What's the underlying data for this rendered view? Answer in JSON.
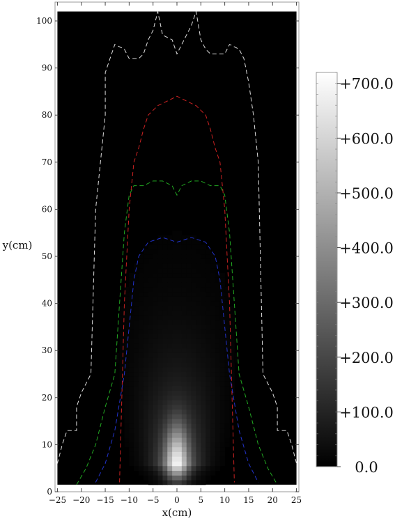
{
  "chart_data": {
    "type": "heatmap",
    "title": "",
    "xlabel": "x(cm)",
    "ylabel": "y(cm)",
    "xlim": [
      -25.5,
      25.5
    ],
    "ylim": [
      0,
      104
    ],
    "x_ticks": [
      -25,
      -20,
      -15,
      -10,
      -5,
      0,
      5,
      10,
      15,
      20,
      25
    ],
    "x_tick_labels": [
      "−25",
      "−20",
      "−15",
      "−10",
      "−5",
      "0",
      "5",
      "10",
      "15",
      "20",
      "25"
    ],
    "y_ticks": [
      0,
      10,
      20,
      30,
      40,
      50,
      60,
      70,
      80,
      90,
      100
    ],
    "y_tick_labels": [
      "0",
      "10",
      "20",
      "30",
      "40",
      "50",
      "60",
      "70",
      "80",
      "90",
      "100"
    ],
    "data_extent": {
      "x": [
        -25,
        25
      ],
      "y": [
        1.5,
        102
      ]
    },
    "colormap": "grayscale",
    "colorbar": {
      "min": 0,
      "max": 720,
      "ticks": [
        0,
        100,
        200,
        300,
        400,
        500,
        600,
        700
      ],
      "tick_labels": [
        "0.0",
        "+100.0",
        "+200.0",
        "+300.0",
        "+400.0",
        "+500.0",
        "+600.0",
        "+700.0"
      ]
    },
    "field": {
      "peak_value": 700,
      "peak_x": 0,
      "peak_y": 6,
      "description_points": [
        {
          "x": 0,
          "y": 6,
          "value": 700
        },
        {
          "x": 0,
          "y": 15,
          "value": 380
        },
        {
          "x": 0,
          "y": 25,
          "value": 170
        },
        {
          "x": 0,
          "y": 40,
          "value": 70
        },
        {
          "x": 0,
          "y": 55,
          "value": 25
        }
      ]
    },
    "contours": [
      {
        "color": "#dddddd",
        "points": [
          [
            -25,
            6
          ],
          [
            -24,
            10
          ],
          [
            -23,
            13
          ],
          [
            -21,
            13
          ],
          [
            -21,
            18
          ],
          [
            -20,
            21
          ],
          [
            -18,
            25
          ],
          [
            -17,
            60
          ],
          [
            -16,
            70
          ],
          [
            -15,
            80
          ],
          [
            -15,
            89
          ],
          [
            -14,
            92
          ],
          [
            -13,
            95
          ],
          [
            -11,
            94
          ],
          [
            -10,
            92
          ],
          [
            -8,
            92
          ],
          [
            -7,
            93
          ],
          [
            -6,
            96
          ],
          [
            -5,
            98
          ],
          [
            -4,
            102
          ],
          [
            -3,
            97
          ],
          [
            -1,
            96
          ],
          [
            0,
            93
          ],
          [
            1,
            95
          ],
          [
            2,
            97
          ],
          [
            3,
            99
          ],
          [
            4,
            102
          ],
          [
            5,
            96
          ],
          [
            6,
            94
          ],
          [
            7,
            93
          ],
          [
            8,
            93
          ],
          [
            10,
            93
          ],
          [
            11,
            95
          ],
          [
            13,
            94
          ],
          [
            14,
            92
          ],
          [
            15,
            87
          ],
          [
            16,
            80
          ],
          [
            17,
            70
          ],
          [
            18,
            25
          ],
          [
            20,
            21
          ],
          [
            21,
            18
          ],
          [
            21,
            13
          ],
          [
            23,
            13
          ],
          [
            24,
            10
          ],
          [
            25,
            6
          ]
        ]
      },
      {
        "color": "#cc2222",
        "points": [
          [
            -12,
            2
          ],
          [
            -11,
            40
          ],
          [
            -10,
            60
          ],
          [
            -9,
            70
          ],
          [
            -8,
            73
          ],
          [
            -7,
            77
          ],
          [
            -6,
            80
          ],
          [
            -4,
            82
          ],
          [
            -2,
            83
          ],
          [
            0,
            84
          ],
          [
            2,
            83
          ],
          [
            4,
            82
          ],
          [
            6,
            80
          ],
          [
            7,
            77
          ],
          [
            8,
            73
          ],
          [
            9,
            70
          ],
          [
            10,
            60
          ],
          [
            11,
            40
          ],
          [
            12,
            2
          ]
        ]
      },
      {
        "color": "#22aa22",
        "points": [
          [
            -21,
            1.5
          ],
          [
            -19,
            5
          ],
          [
            -17,
            10
          ],
          [
            -15,
            18
          ],
          [
            -13,
            25
          ],
          [
            -12,
            40
          ],
          [
            -11,
            55
          ],
          [
            -10,
            63
          ],
          [
            -9,
            65
          ],
          [
            -7,
            65
          ],
          [
            -5,
            66
          ],
          [
            -3,
            66
          ],
          [
            -1,
            65
          ],
          [
            0,
            63
          ],
          [
            1,
            65
          ],
          [
            3,
            66
          ],
          [
            5,
            66
          ],
          [
            7,
            65
          ],
          [
            9,
            65
          ],
          [
            10,
            63
          ],
          [
            11,
            55
          ],
          [
            12,
            40
          ],
          [
            13,
            25
          ],
          [
            15,
            18
          ],
          [
            17,
            10
          ],
          [
            19,
            5
          ],
          [
            21,
            1.5
          ]
        ]
      },
      {
        "color": "#2233cc",
        "points": [
          [
            -17,
            2
          ],
          [
            -15,
            6
          ],
          [
            -13,
            13
          ],
          [
            -11,
            25
          ],
          [
            -10,
            35
          ],
          [
            -9,
            45
          ],
          [
            -8,
            50
          ],
          [
            -6,
            53
          ],
          [
            -3,
            54
          ],
          [
            0,
            53
          ],
          [
            3,
            54
          ],
          [
            6,
            53
          ],
          [
            8,
            50
          ],
          [
            9,
            45
          ],
          [
            10,
            35
          ],
          [
            11,
            25
          ],
          [
            13,
            13
          ],
          [
            15,
            6
          ],
          [
            17,
            2
          ]
        ]
      }
    ]
  }
}
